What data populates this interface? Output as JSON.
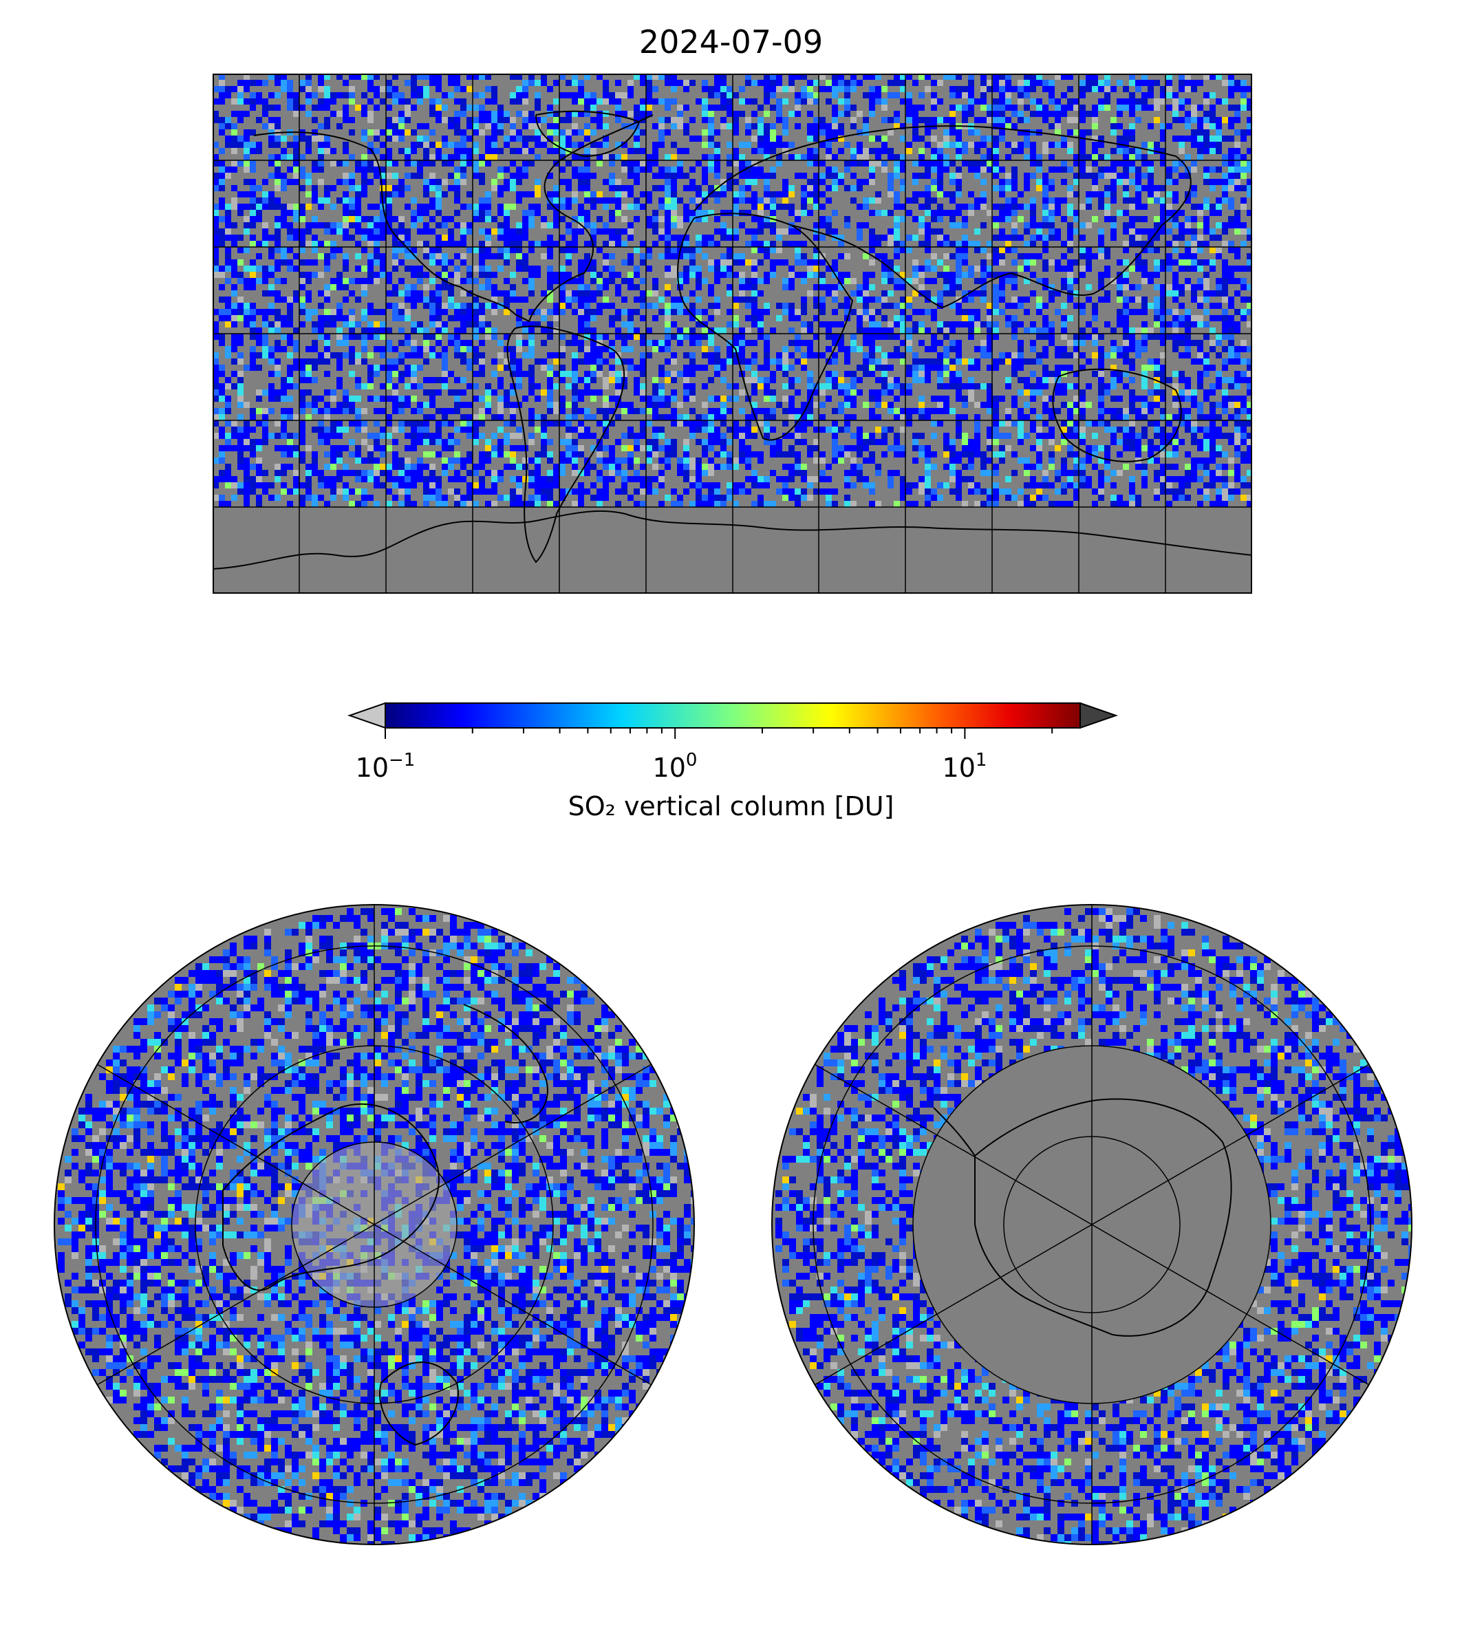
{
  "figure": {
    "title": "2024-07-09"
  },
  "colorbar": {
    "label": "SO₂ vertical column [DU]",
    "scale": "log",
    "range": [
      0.1,
      25
    ],
    "colormap": "jet",
    "under_color": "#c8c8c8",
    "over_color": "#404040",
    "ticks": [
      {
        "base": "10",
        "exp": "−1",
        "value": 0.1
      },
      {
        "base": "10",
        "exp": "0",
        "value": 1
      },
      {
        "base": "10",
        "exp": "1",
        "value": 10
      }
    ]
  },
  "maps": {
    "global": {
      "projection": "equirectangular",
      "gridlines": true,
      "background": "#808080"
    },
    "north_polar": {
      "projection": "north-polar-stereographic",
      "gridlines": true
    },
    "south_polar": {
      "projection": "south-polar-stereographic",
      "gridlines": true
    }
  },
  "colors": {
    "no_data": "#808080",
    "jet_stops": [
      "#00007f",
      "#0000ff",
      "#007fff",
      "#00ffff",
      "#7fff7f",
      "#ffff00",
      "#ff7f00",
      "#ff0000",
      "#7f0000"
    ]
  }
}
